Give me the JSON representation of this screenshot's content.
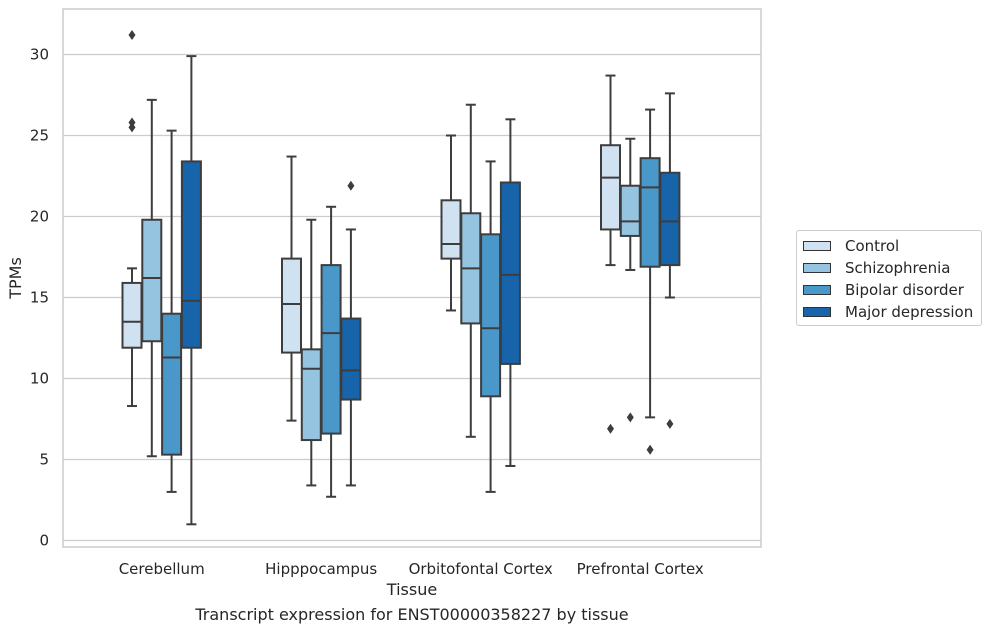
{
  "chart_data": {
    "type": "box",
    "title": "",
    "caption": "Transcript expression for ENST00000358227 by tissue",
    "xlabel": "Tissue",
    "ylabel": "TPMs",
    "ylim": [
      -0.5,
      32.8
    ],
    "yticks": [
      0,
      5,
      10,
      15,
      20,
      25,
      30
    ],
    "grid": "horizontal",
    "legend_placement": "right",
    "categories": [
      "Cerebellum",
      "Hipppocampus",
      "Orbitofontal Cortex",
      "Prefrontal Cortex"
    ],
    "series": [
      {
        "name": "Control",
        "color": "#d0e1f2",
        "boxes": [
          {
            "whislo": 8.3,
            "q1": 11.9,
            "med": 13.5,
            "q3": 15.9,
            "whishi": 16.8,
            "fliers": []
          },
          {
            "whislo": 7.4,
            "q1": 11.6,
            "med": 14.6,
            "q3": 17.4,
            "whishi": 23.7,
            "fliers": []
          },
          {
            "whislo": 14.2,
            "q1": 17.4,
            "med": 18.3,
            "q3": 21.0,
            "whishi": 25.0,
            "fliers": []
          },
          {
            "whislo": 17.0,
            "q1": 19.2,
            "med": 22.4,
            "q3": 24.4,
            "whishi": 28.7,
            "fliers": [
              6.9
            ]
          }
        ]
      },
      {
        "name": "Schizophrenia",
        "color": "#94c4df",
        "boxes": [
          {
            "whislo": 5.2,
            "q1": 12.3,
            "med": 16.2,
            "q3": 19.8,
            "whishi": 27.2,
            "fliers": []
          },
          {
            "whislo": 3.4,
            "q1": 6.2,
            "med": 10.6,
            "q3": 11.8,
            "whishi": 19.8,
            "fliers": []
          },
          {
            "whislo": 6.4,
            "q1": 13.4,
            "med": 16.8,
            "q3": 20.2,
            "whishi": 26.9,
            "fliers": []
          },
          {
            "whislo": 16.7,
            "q1": 18.8,
            "med": 19.7,
            "q3": 21.9,
            "whishi": 24.8,
            "fliers": [
              7.6
            ]
          }
        ]
      },
      {
        "name": "Bipolar disorder",
        "color": "#4a98c9",
        "boxes": [
          {
            "whislo": 3.0,
            "q1": 5.3,
            "med": 11.3,
            "q3": 14.0,
            "whishi": 25.3,
            "fliers": []
          },
          {
            "whislo": 2.7,
            "q1": 6.6,
            "med": 12.8,
            "q3": 17.0,
            "whishi": 20.6,
            "fliers": []
          },
          {
            "whislo": 3.0,
            "q1": 8.9,
            "med": 13.1,
            "q3": 18.9,
            "whishi": 23.4,
            "fliers": []
          },
          {
            "whislo": 7.6,
            "q1": 16.9,
            "med": 21.8,
            "q3": 23.6,
            "whishi": 26.6,
            "fliers": [
              5.6
            ]
          }
        ]
      },
      {
        "name": "Major depression",
        "color": "#1764ab",
        "boxes": [
          {
            "whislo": 1.0,
            "q1": 11.9,
            "med": 14.8,
            "q3": 23.4,
            "whishi": 29.9,
            "fliers": []
          },
          {
            "whislo": 3.4,
            "q1": 8.7,
            "med": 10.5,
            "q3": 13.7,
            "whishi": 19.2,
            "fliers": [
              21.9
            ]
          },
          {
            "whislo": 4.6,
            "q1": 10.9,
            "med": 16.4,
            "q3": 22.1,
            "whishi": 26.0,
            "fliers": []
          },
          {
            "whislo": 15.0,
            "q1": 17.0,
            "med": 19.7,
            "q3": 22.7,
            "whishi": 27.6,
            "fliers": [
              7.2
            ]
          }
        ]
      }
    ],
    "extra_fliers": [
      {
        "category": 0,
        "series": 0,
        "values": [
          31.2,
          25.8,
          25.5
        ]
      }
    ]
  }
}
